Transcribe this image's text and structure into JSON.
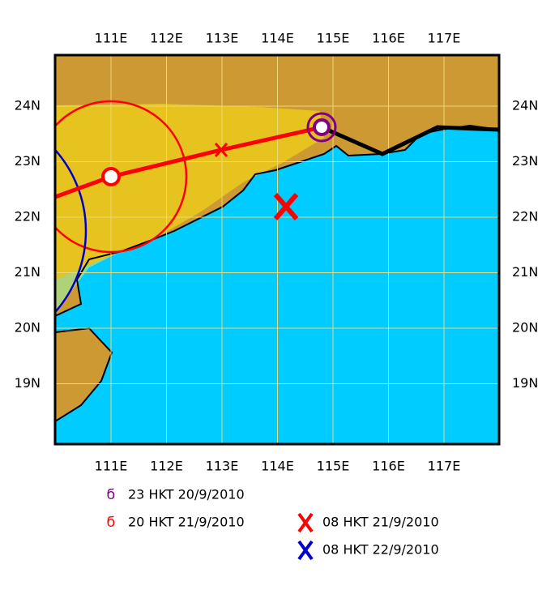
{
  "map": {
    "lon_labels": [
      "111E",
      "112E",
      "113E",
      "114E",
      "115E",
      "116E",
      "117E"
    ],
    "lat_labels": [
      "24N",
      "23N",
      "22N",
      "21N",
      "20N",
      "19N"
    ],
    "legend": [
      {
        "label": "23 HKT 20/9/2010"
      },
      {
        "label": "20 HKT 21/9/2010"
      },
      {
        "label": "08 HKT 21/9/2010"
      },
      {
        "label": "08 HKT 22/9/2010"
      }
    ]
  }
}
